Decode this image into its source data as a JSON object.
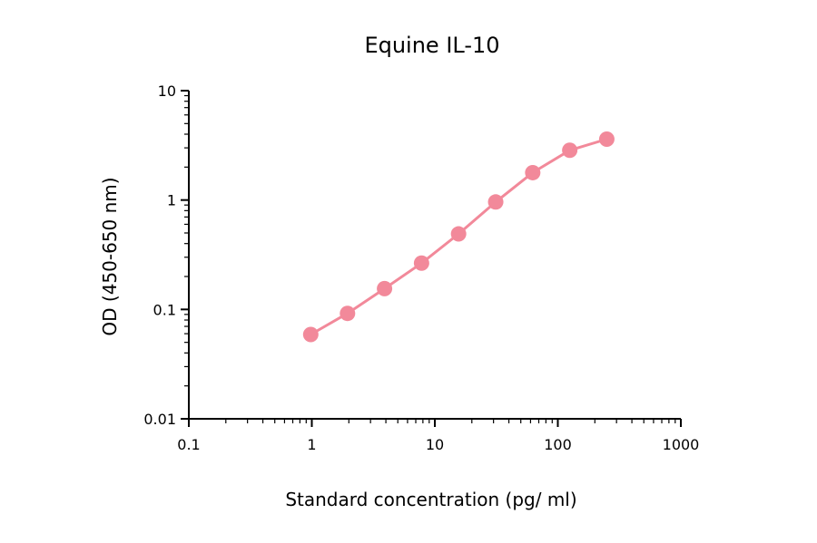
{
  "chart_data": {
    "type": "line",
    "title": "Equine IL-10",
    "xlabel": "Standard concentration (pg/ ml)",
    "ylabel": "OD (450-650 nm)",
    "x_scale": "log",
    "y_scale": "log",
    "xlim": [
      0.1,
      1000
    ],
    "ylim": [
      0.01,
      10
    ],
    "x_ticks": [
      0.1,
      1,
      10,
      100,
      1000
    ],
    "x_tick_labels": [
      "0.1",
      "1",
      "10",
      "100",
      "1000"
    ],
    "y_ticks": [
      0.01,
      0.1,
      1,
      10
    ],
    "y_tick_labels": [
      "0.01",
      "0.1",
      "1",
      "10"
    ],
    "grid": false,
    "legend": "none",
    "series": [
      {
        "color": "#F2899A",
        "x": [
          0.98,
          1.95,
          3.9,
          7.8,
          15.6,
          31.25,
          62.5,
          125,
          250
        ],
        "y": [
          0.059,
          0.092,
          0.155,
          0.265,
          0.49,
          0.96,
          1.78,
          2.85,
          3.6
        ]
      }
    ]
  }
}
